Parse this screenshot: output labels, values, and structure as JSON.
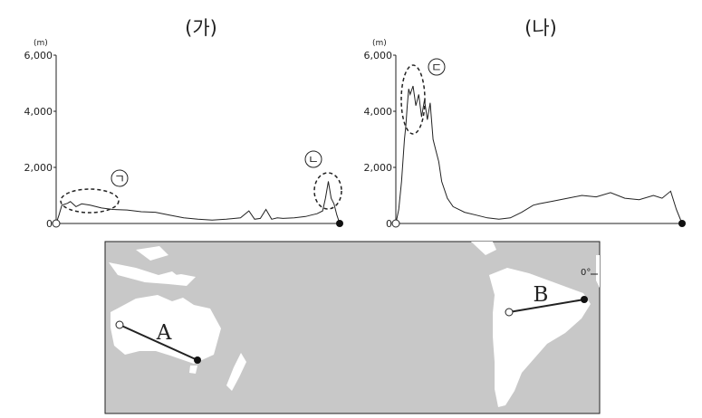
{
  "chart_data": [
    {
      "type": "line",
      "title": "(가)",
      "ylabel": "(m)",
      "ylim": [
        0,
        6000
      ],
      "yticks": [
        "6,000",
        "4,000",
        "2,000",
        "0"
      ],
      "annotations": [
        {
          "mark": "ㄱ",
          "x": 0.09,
          "y": 700
        },
        {
          "mark": "ㄴ",
          "x": 0.97,
          "y": 1400
        }
      ],
      "series": [
        {
          "x": [
            0,
            0.01,
            0.02,
            0.04,
            0.05,
            0.07,
            0.09,
            0.12,
            0.16,
            0.2,
            0.25,
            0.3,
            0.35,
            0.4,
            0.45,
            0.5,
            0.55,
            0.6,
            0.65,
            0.68,
            0.7,
            0.72,
            0.74,
            0.76,
            0.78,
            0.8,
            0.84,
            0.88,
            0.9,
            0.92,
            0.94,
            0.95,
            0.96,
            0.97,
            0.98,
            0.99,
            1
          ],
          "values": [
            0,
            300,
            650,
            720,
            780,
            600,
            700,
            650,
            550,
            500,
            480,
            420,
            400,
            300,
            200,
            150,
            120,
            150,
            200,
            450,
            150,
            180,
            500,
            150,
            200,
            180,
            200,
            250,
            300,
            350,
            450,
            900,
            1500,
            900,
            700,
            300,
            0
          ]
        }
      ]
    },
    {
      "type": "line",
      "title": "(나)",
      "ylabel": "(m)",
      "ylim": [
        0,
        6000
      ],
      "yticks": [
        "6,000",
        "4,000",
        "2,000",
        "0"
      ],
      "annotations": [
        {
          "mark": "ㄷ",
          "x": 0.06,
          "y": 4300
        }
      ],
      "series": [
        {
          "x": [
            0,
            0.01,
            0.02,
            0.03,
            0.035,
            0.04,
            0.045,
            0.05,
            0.06,
            0.07,
            0.08,
            0.09,
            0.1,
            0.11,
            0.12,
            0.13,
            0.14,
            0.15,
            0.16,
            0.18,
            0.2,
            0.24,
            0.28,
            0.32,
            0.36,
            0.4,
            0.44,
            0.48,
            0.5,
            0.55,
            0.6,
            0.65,
            0.7,
            0.75,
            0.8,
            0.85,
            0.9,
            0.93,
            0.96,
            0.98,
            1
          ],
          "values": [
            0,
            500,
            1500,
            3000,
            3500,
            4200,
            4800,
            4600,
            4900,
            4200,
            4600,
            3800,
            4400,
            3700,
            4300,
            3000,
            2600,
            2200,
            1500,
            900,
            600,
            400,
            300,
            200,
            150,
            200,
            400,
            650,
            700,
            800,
            900,
            1000,
            950,
            1100,
            900,
            850,
            1000,
            900,
            1150,
            500,
            0
          ]
        }
      ]
    }
  ],
  "map": {
    "labels": {
      "A": "A",
      "B": "B",
      "equator": "0°"
    }
  }
}
